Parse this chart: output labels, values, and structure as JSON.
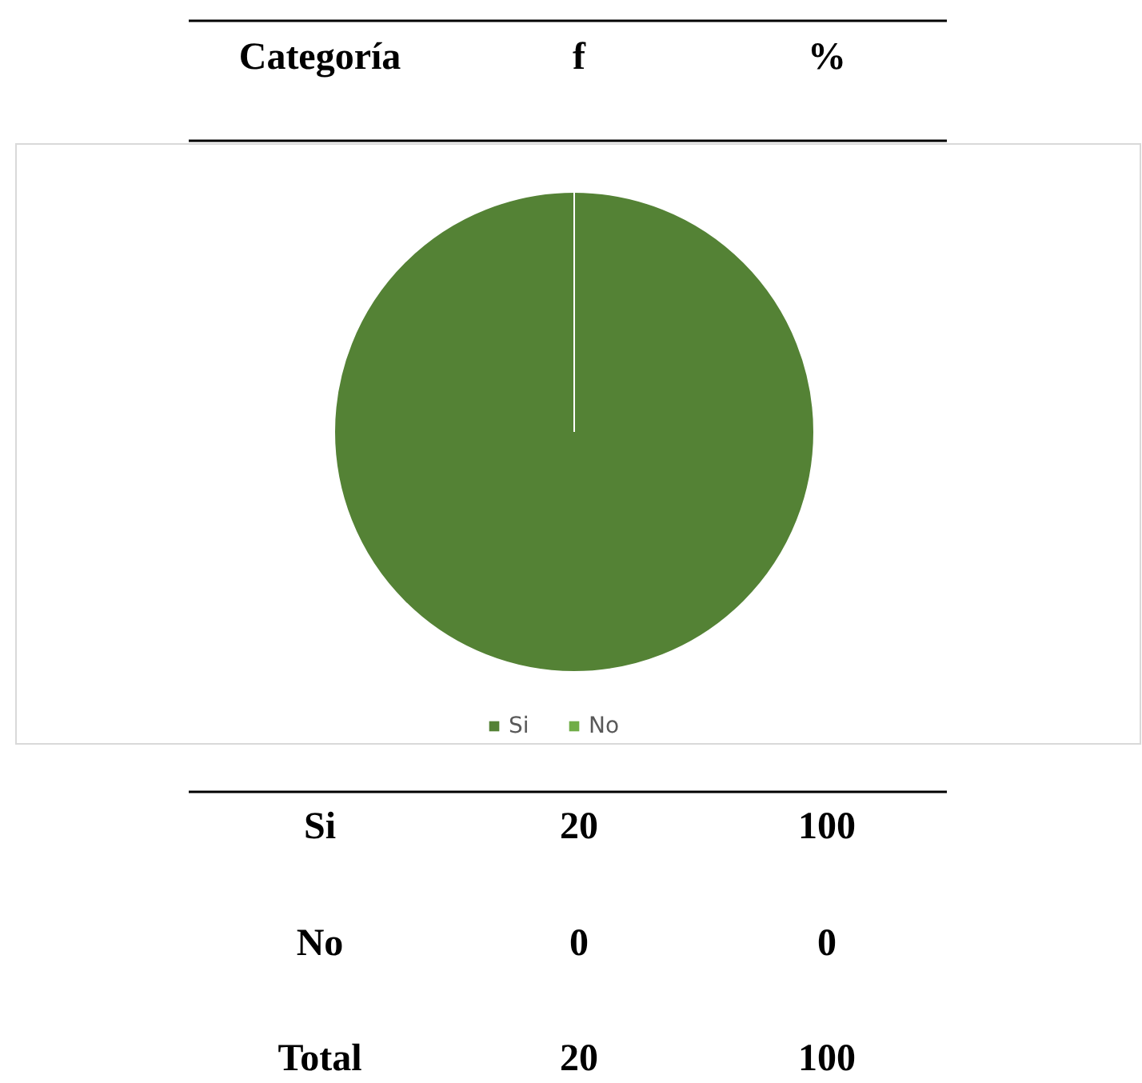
{
  "chart_data": {
    "type": "pie",
    "categories": [
      "Si",
      "No"
    ],
    "values": [
      100,
      0
    ],
    "colors": [
      "#548235",
      "#70ad47"
    ],
    "data_labels": true,
    "legend": "bottom",
    "annotations": [
      "Categoría",
      "f",
      "%",
      "20",
      "0",
      "Total",
      "20",
      "100"
    ]
  }
}
